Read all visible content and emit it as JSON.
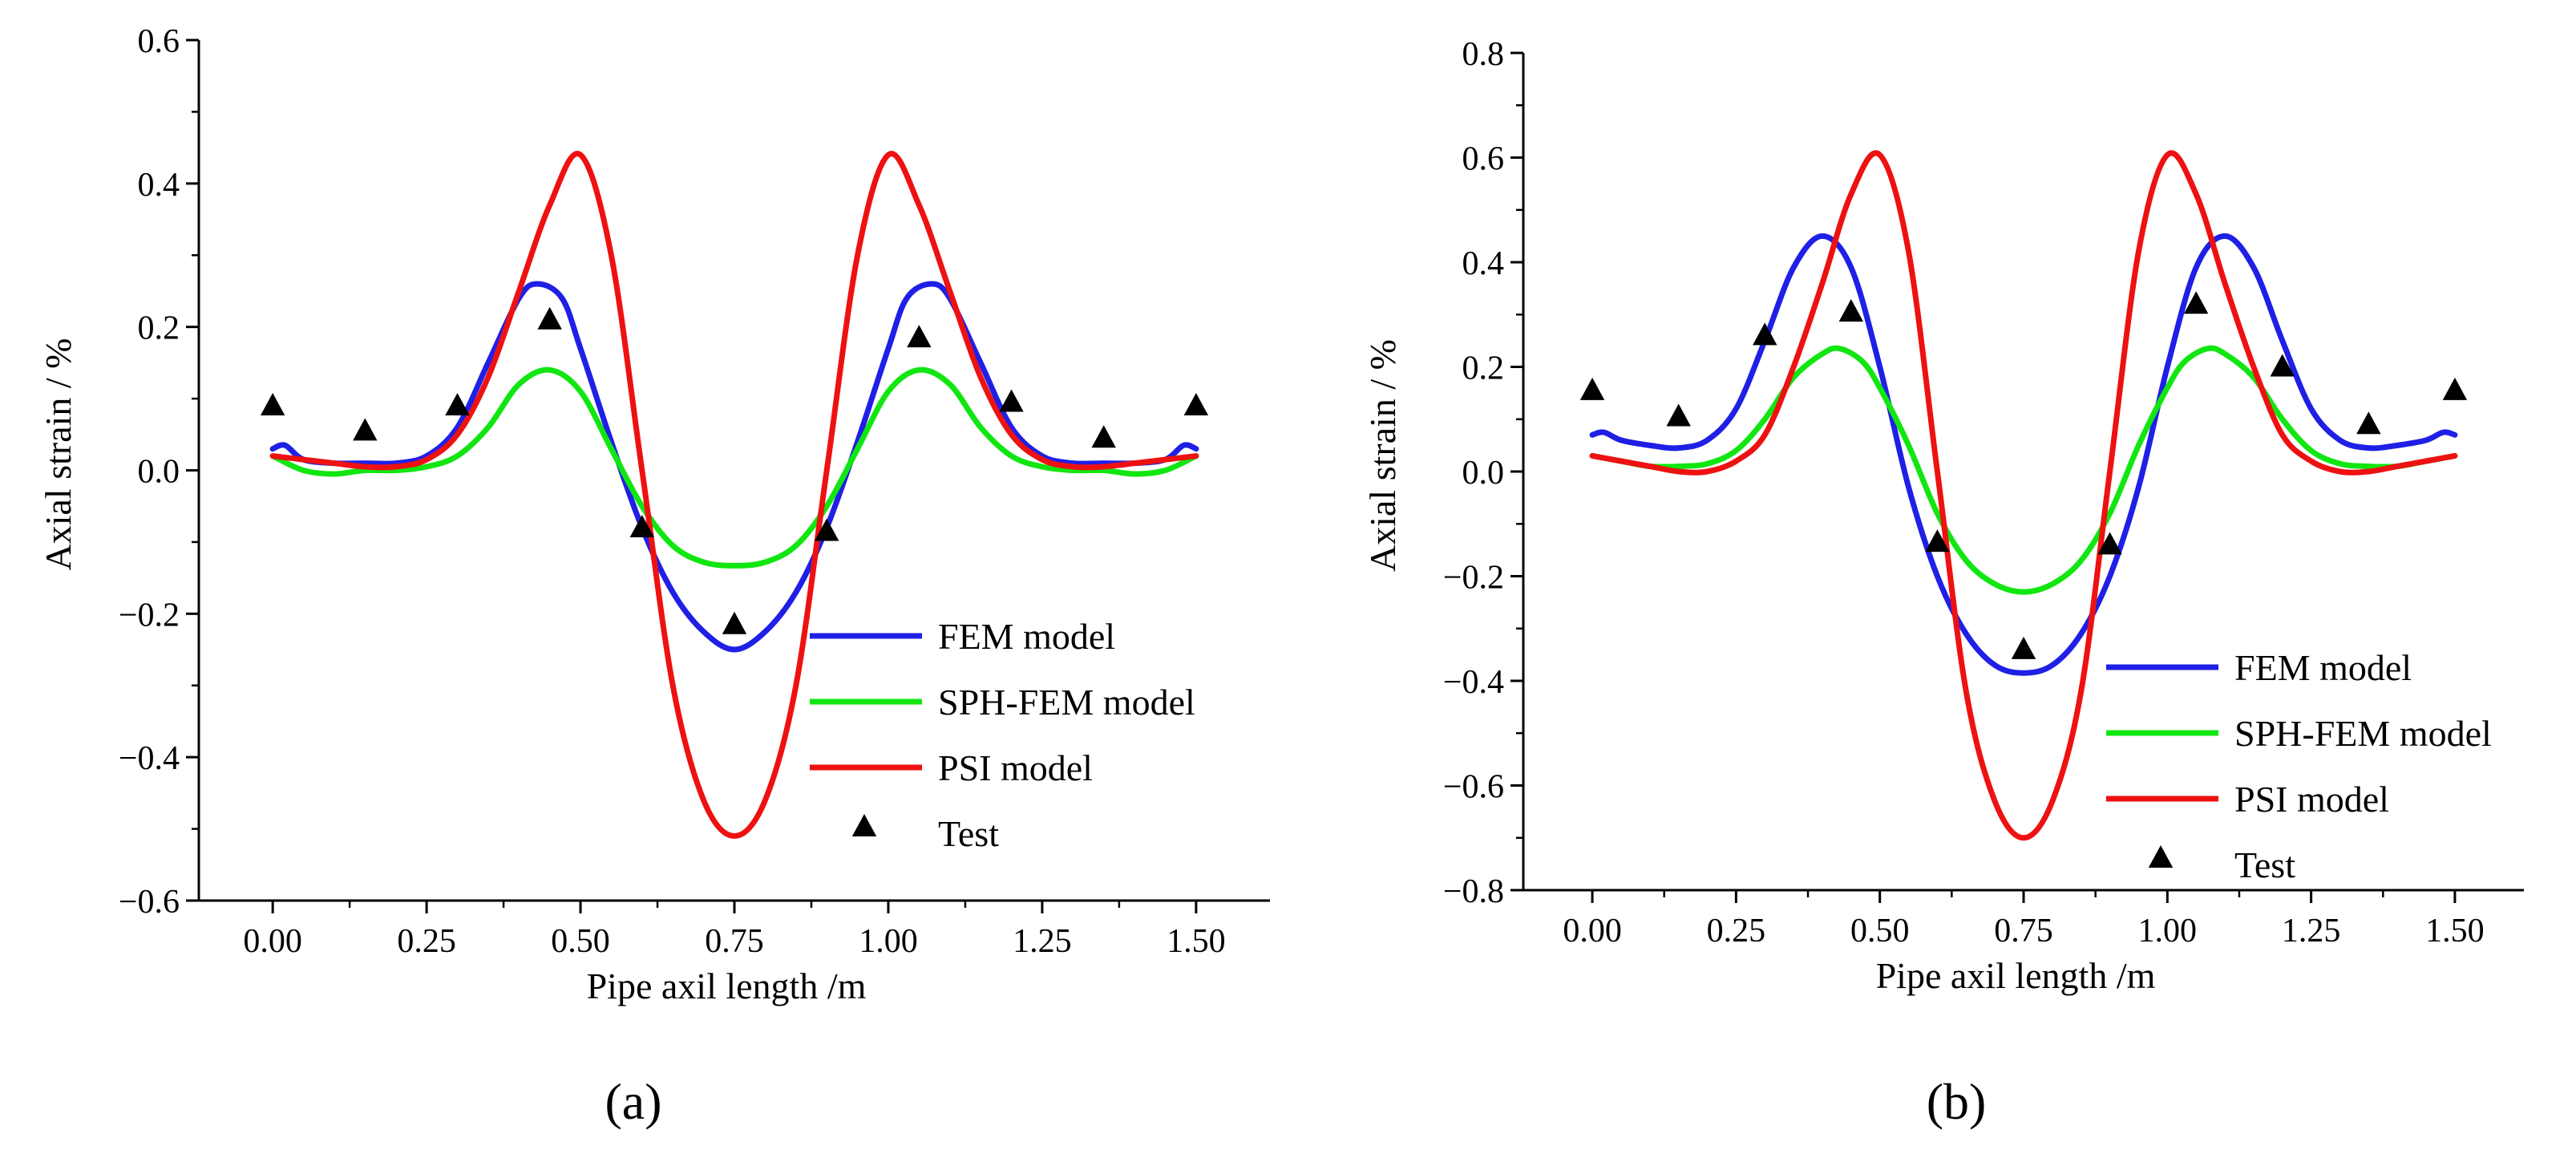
{
  "chart_data": [
    {
      "type": "line",
      "panel_label": "(a)",
      "xlabel": "Pipe axil length /m",
      "ylabel": "Axial strain  / %",
      "xlim": [
        -0.12,
        1.62
      ],
      "ylim": [
        -0.6,
        0.6
      ],
      "xticks": [
        0.0,
        0.25,
        0.5,
        0.75,
        1.0,
        1.25,
        1.5
      ],
      "xtick_labels": [
        "0.00",
        "0.25",
        "0.50",
        "0.75",
        "1.00",
        "1.25",
        "1.50"
      ],
      "yticks": [
        -0.6,
        -0.4,
        -0.2,
        0.0,
        0.2,
        0.4,
        0.6
      ],
      "ytick_labels": [
        "−0.6",
        "−0.4",
        "−0.2",
        "0.0",
        "0.2",
        "0.4",
        "0.6"
      ],
      "legend_position": "bottom-right",
      "series": [
        {
          "name": "FEM model",
          "color": "#1f1fe6",
          "x": [
            0.0,
            0.02,
            0.05,
            0.1,
            0.15,
            0.2,
            0.25,
            0.3,
            0.35,
            0.4,
            0.43,
            0.47,
            0.5,
            0.55,
            0.6,
            0.65,
            0.7,
            0.75,
            0.8,
            0.85,
            0.9,
            0.95,
            1.0,
            1.03,
            1.07,
            1.1,
            1.15,
            1.2,
            1.25,
            1.3,
            1.35,
            1.4,
            1.45,
            1.48,
            1.5
          ],
          "y": [
            0.03,
            0.035,
            0.015,
            0.01,
            0.01,
            0.01,
            0.02,
            0.06,
            0.15,
            0.24,
            0.26,
            0.24,
            0.17,
            0.04,
            -0.08,
            -0.17,
            -0.225,
            -0.25,
            -0.225,
            -0.17,
            -0.08,
            0.04,
            0.17,
            0.24,
            0.26,
            0.24,
            0.15,
            0.06,
            0.02,
            0.01,
            0.01,
            0.01,
            0.015,
            0.035,
            0.03
          ]
        },
        {
          "name": "SPH-FEM model",
          "color": "#11e611",
          "x": [
            0.0,
            0.05,
            0.1,
            0.15,
            0.2,
            0.25,
            0.3,
            0.35,
            0.4,
            0.45,
            0.5,
            0.55,
            0.6,
            0.65,
            0.7,
            0.75,
            0.8,
            0.85,
            0.9,
            0.95,
            1.0,
            1.05,
            1.1,
            1.15,
            1.2,
            1.25,
            1.3,
            1.35,
            1.4,
            1.45,
            1.5
          ],
          "y": [
            0.02,
            0.0,
            -0.005,
            0.0,
            0.0,
            0.005,
            0.02,
            0.06,
            0.12,
            0.14,
            0.11,
            0.03,
            -0.05,
            -0.105,
            -0.128,
            -0.133,
            -0.128,
            -0.105,
            -0.05,
            0.03,
            0.11,
            0.14,
            0.12,
            0.06,
            0.02,
            0.005,
            0.0,
            0.0,
            -0.005,
            0.0,
            0.02
          ]
        },
        {
          "name": "PSI model",
          "color": "#ee1111",
          "x": [
            0.0,
            0.05,
            0.1,
            0.15,
            0.2,
            0.25,
            0.3,
            0.35,
            0.4,
            0.45,
            0.5,
            0.55,
            0.6,
            0.65,
            0.7,
            0.75,
            0.8,
            0.85,
            0.9,
            0.95,
            1.0,
            1.05,
            1.1,
            1.15,
            1.2,
            1.25,
            1.3,
            1.35,
            1.4,
            1.45,
            1.5
          ],
          "y": [
            0.02,
            0.015,
            0.01,
            0.005,
            0.005,
            0.015,
            0.05,
            0.13,
            0.25,
            0.37,
            0.44,
            0.3,
            0.0,
            -0.3,
            -0.46,
            -0.51,
            -0.46,
            -0.3,
            0.0,
            0.3,
            0.44,
            0.37,
            0.25,
            0.13,
            0.05,
            0.015,
            0.005,
            0.005,
            0.01,
            0.015,
            0.02
          ]
        },
        {
          "name": "Test",
          "marker": "triangle",
          "color": "#000000",
          "x": [
            0.0,
            0.15,
            0.3,
            0.45,
            0.6,
            0.75,
            0.9,
            1.05,
            1.2,
            1.35,
            1.5
          ],
          "y": [
            0.09,
            0.055,
            0.09,
            0.21,
            -0.08,
            -0.215,
            -0.085,
            0.185,
            0.095,
            0.045,
            0.09
          ]
        }
      ]
    },
    {
      "type": "line",
      "panel_label": "(b)",
      "xlabel": "Pipe axil length /m",
      "ylabel": "Axial strain  / %",
      "xlim": [
        -0.12,
        1.62
      ],
      "ylim": [
        -0.8,
        0.8
      ],
      "xticks": [
        0.0,
        0.25,
        0.5,
        0.75,
        1.0,
        1.25,
        1.5
      ],
      "xtick_labels": [
        "0.00",
        "0.25",
        "0.50",
        "0.75",
        "1.00",
        "1.25",
        "1.50"
      ],
      "yticks": [
        -0.8,
        -0.6,
        -0.4,
        -0.2,
        0.0,
        0.2,
        0.4,
        0.6,
        0.8
      ],
      "ytick_labels": [
        "−0.8",
        "−0.6",
        "−0.4",
        "−0.2",
        "0.0",
        "0.2",
        "0.4",
        "0.6",
        "0.8"
      ],
      "legend_position": "bottom-right",
      "series": [
        {
          "name": "FEM model",
          "color": "#1f1fe6",
          "x": [
            0.0,
            0.02,
            0.05,
            0.1,
            0.15,
            0.2,
            0.25,
            0.3,
            0.35,
            0.4,
            0.45,
            0.5,
            0.55,
            0.6,
            0.65,
            0.7,
            0.75,
            0.8,
            0.85,
            0.9,
            0.95,
            1.0,
            1.05,
            1.1,
            1.15,
            1.2,
            1.25,
            1.3,
            1.35,
            1.4,
            1.45,
            1.48,
            1.5
          ],
          "y": [
            0.07,
            0.075,
            0.06,
            0.05,
            0.045,
            0.06,
            0.12,
            0.25,
            0.39,
            0.45,
            0.39,
            0.2,
            -0.03,
            -0.2,
            -0.31,
            -0.37,
            -0.385,
            -0.37,
            -0.31,
            -0.2,
            -0.03,
            0.2,
            0.39,
            0.45,
            0.39,
            0.25,
            0.12,
            0.06,
            0.045,
            0.05,
            0.06,
            0.075,
            0.07
          ]
        },
        {
          "name": "SPH-FEM model",
          "color": "#11e611",
          "x": [
            0.0,
            0.05,
            0.1,
            0.15,
            0.2,
            0.25,
            0.3,
            0.35,
            0.4,
            0.43,
            0.47,
            0.5,
            0.55,
            0.6,
            0.65,
            0.7,
            0.75,
            0.8,
            0.85,
            0.9,
            0.95,
            1.0,
            1.03,
            1.07,
            1.1,
            1.15,
            1.2,
            1.25,
            1.3,
            1.35,
            1.4,
            1.45,
            1.5
          ],
          "y": [
            0.03,
            0.02,
            0.01,
            0.01,
            0.015,
            0.04,
            0.1,
            0.18,
            0.225,
            0.235,
            0.21,
            0.16,
            0.05,
            -0.08,
            -0.17,
            -0.215,
            -0.23,
            -0.215,
            -0.17,
            -0.08,
            0.05,
            0.16,
            0.21,
            0.235,
            0.225,
            0.18,
            0.1,
            0.04,
            0.015,
            0.01,
            0.01,
            0.02,
            0.03
          ]
        },
        {
          "name": "PSI model",
          "color": "#ee1111",
          "x": [
            0.0,
            0.05,
            0.1,
            0.15,
            0.2,
            0.25,
            0.3,
            0.35,
            0.4,
            0.45,
            0.5,
            0.55,
            0.6,
            0.65,
            0.7,
            0.75,
            0.8,
            0.85,
            0.9,
            0.95,
            1.0,
            1.05,
            1.1,
            1.15,
            1.2,
            1.25,
            1.3,
            1.35,
            1.4,
            1.45,
            1.5
          ],
          "y": [
            0.03,
            0.02,
            0.01,
            0.0,
            0.0,
            0.02,
            0.07,
            0.2,
            0.36,
            0.53,
            0.605,
            0.42,
            0.0,
            -0.42,
            -0.63,
            -0.7,
            -0.63,
            -0.42,
            0.0,
            0.42,
            0.605,
            0.53,
            0.36,
            0.2,
            0.07,
            0.02,
            0.0,
            0.0,
            0.01,
            0.02,
            0.03
          ]
        },
        {
          "name": "Test",
          "marker": "triangle",
          "color": "#000000",
          "x": [
            0.0,
            0.15,
            0.3,
            0.45,
            0.6,
            0.75,
            0.9,
            1.05,
            1.2,
            1.35,
            1.5
          ],
          "y": [
            0.155,
            0.105,
            0.26,
            0.305,
            -0.135,
            -0.34,
            -0.14,
            0.32,
            0.2,
            0.09,
            0.155
          ]
        }
      ]
    }
  ]
}
